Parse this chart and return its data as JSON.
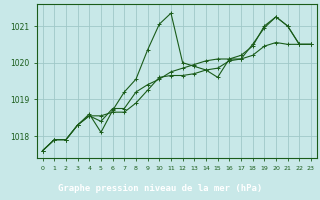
{
  "title": "Graphe pression niveau de la mer (hPa)",
  "background_color": "#c8e8e8",
  "bottom_bar_color": "#2d6b2d",
  "grid_color": "#a0c8c8",
  "line_color": "#1a5c1a",
  "marker_color": "#1a5c1a",
  "xlim": [
    -0.5,
    23.5
  ],
  "ylim": [
    1017.4,
    1021.6
  ],
  "yticks": [
    1018,
    1019,
    1020,
    1021
  ],
  "xticks": [
    0,
    1,
    2,
    3,
    4,
    5,
    6,
    7,
    8,
    9,
    10,
    11,
    12,
    13,
    14,
    15,
    16,
    17,
    18,
    19,
    20,
    21,
    22,
    23
  ],
  "series": [
    [
      1017.6,
      1017.9,
      1017.9,
      1018.3,
      1018.6,
      1018.1,
      1018.7,
      1019.2,
      1019.55,
      1020.35,
      1021.05,
      1021.35,
      1020.0,
      1019.9,
      1019.8,
      1019.6,
      1020.1,
      1020.1,
      1020.5,
      1020.95,
      1021.25,
      1021.0,
      1020.5,
      1020.5
    ],
    [
      1017.6,
      1017.9,
      1017.9,
      1018.3,
      1018.55,
      1018.55,
      1018.65,
      1018.65,
      1018.9,
      1019.25,
      1019.6,
      1019.65,
      1019.65,
      1019.7,
      1019.8,
      1019.85,
      1020.05,
      1020.1,
      1020.2,
      1020.45,
      1020.55,
      1020.5,
      1020.5,
      1020.5
    ],
    [
      1017.6,
      1017.9,
      1017.9,
      1018.3,
      1018.55,
      1018.4,
      1018.75,
      1018.75,
      1019.2,
      1019.4,
      1019.55,
      1019.75,
      1019.85,
      1019.95,
      1020.05,
      1020.1,
      1020.1,
      1020.2,
      1020.45,
      1021.0,
      1021.25,
      1021.0,
      1020.5,
      1020.5
    ]
  ]
}
